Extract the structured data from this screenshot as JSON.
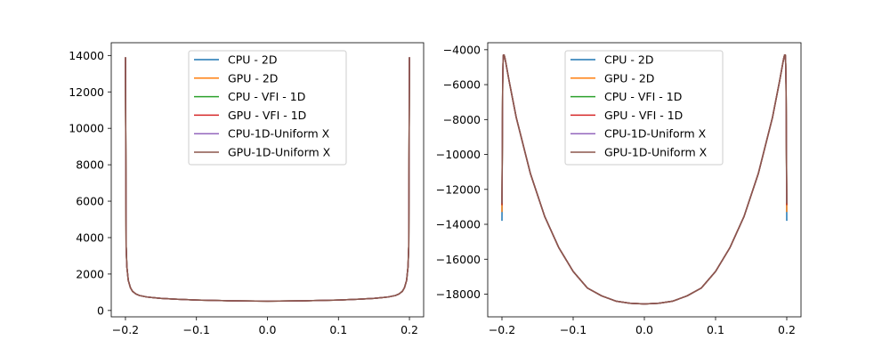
{
  "chart_data": [
    {
      "type": "line",
      "title": "",
      "xlabel": "",
      "ylabel": "",
      "xlim": [
        -0.22,
        0.22
      ],
      "ylim": [
        -350,
        14700
      ],
      "xticks": [
        -0.2,
        -0.1,
        0.0,
        0.1,
        0.2
      ],
      "xtick_labels": [
        "−0.2",
        "−0.1",
        "0.0",
        "0.1",
        "0.2"
      ],
      "yticks": [
        0,
        2000,
        4000,
        6000,
        8000,
        10000,
        12000,
        14000
      ],
      "ytick_labels": [
        "0",
        "2000",
        "4000",
        "6000",
        "8000",
        "10000",
        "12000",
        "14000"
      ],
      "grid": false,
      "legend": "upper-center",
      "x": [
        -0.2,
        -0.199,
        -0.198,
        -0.196,
        -0.193,
        -0.19,
        -0.185,
        -0.18,
        -0.17,
        -0.16,
        -0.15,
        -0.13,
        -0.1,
        -0.05,
        0.0,
        0.05,
        0.1,
        0.13,
        0.15,
        0.16,
        0.17,
        0.18,
        0.185,
        0.19,
        0.193,
        0.196,
        0.198,
        0.199,
        0.2
      ],
      "series": [
        {
          "name": "CPU - 2D",
          "color": "#1f77b4",
          "values": [
            13900,
            3500,
            2400,
            1650,
            1250,
            1050,
            900,
            820,
            740,
            700,
            665,
            620,
            570,
            530,
            510,
            530,
            570,
            620,
            665,
            700,
            740,
            820,
            900,
            1050,
            1250,
            1650,
            2400,
            3500,
            13900
          ]
        },
        {
          "name": "GPU - 2D",
          "color": "#ff7f0e",
          "values": [
            13900,
            3500,
            2400,
            1650,
            1250,
            1050,
            900,
            820,
            740,
            700,
            665,
            620,
            570,
            530,
            510,
            530,
            570,
            620,
            665,
            700,
            740,
            820,
            900,
            1050,
            1250,
            1650,
            2400,
            3500,
            13900
          ]
        },
        {
          "name": "CPU - VFI - 1D",
          "color": "#2ca02c",
          "values": [
            13900,
            3500,
            2400,
            1650,
            1250,
            1050,
            900,
            820,
            740,
            700,
            665,
            620,
            570,
            530,
            510,
            530,
            570,
            620,
            665,
            700,
            740,
            820,
            900,
            1050,
            1250,
            1650,
            2400,
            3500,
            13900
          ]
        },
        {
          "name": "GPU - VFI - 1D",
          "color": "#d62728",
          "values": [
            13900,
            3500,
            2400,
            1650,
            1250,
            1050,
            900,
            820,
            740,
            700,
            665,
            620,
            570,
            530,
            510,
            530,
            570,
            620,
            665,
            700,
            740,
            820,
            900,
            1050,
            1250,
            1650,
            2400,
            3500,
            13900
          ]
        },
        {
          "name": "CPU-1D-Uniform X",
          "color": "#9467bd",
          "values": [
            13900,
            3500,
            2400,
            1650,
            1250,
            1050,
            900,
            820,
            740,
            700,
            665,
            620,
            570,
            530,
            510,
            530,
            570,
            620,
            665,
            700,
            740,
            820,
            900,
            1050,
            1250,
            1650,
            2400,
            3500,
            13900
          ]
        },
        {
          "name": "GPU-1D-Uniform X",
          "color": "#8c564b",
          "values": [
            13900,
            3500,
            2400,
            1650,
            1250,
            1050,
            900,
            820,
            740,
            700,
            665,
            620,
            570,
            530,
            510,
            530,
            570,
            620,
            665,
            700,
            740,
            820,
            900,
            1050,
            1250,
            1650,
            2400,
            3500,
            13900
          ]
        }
      ]
    },
    {
      "type": "line",
      "title": "",
      "xlabel": "",
      "ylabel": "",
      "xlim": [
        -0.22,
        0.22
      ],
      "ylim": [
        -19300,
        -3600
      ],
      "xticks": [
        -0.2,
        -0.1,
        0.0,
        0.1,
        0.2
      ],
      "xtick_labels": [
        "−0.2",
        "−0.1",
        "0.0",
        "0.1",
        "0.2"
      ],
      "yticks": [
        -18000,
        -16000,
        -14000,
        -12000,
        -10000,
        -8000,
        -6000,
        -4000
      ],
      "ytick_labels": [
        "−18000",
        "−16000",
        "−14000",
        "−12000",
        "−10000",
        "−8000",
        "−6000",
        "−4000"
      ],
      "grid": false,
      "legend": "upper-center",
      "x": [
        -0.2,
        -0.199,
        -0.1985,
        -0.198,
        -0.197,
        -0.196,
        -0.195,
        -0.19,
        -0.18,
        -0.16,
        -0.14,
        -0.12,
        -0.1,
        -0.08,
        -0.06,
        -0.04,
        -0.02,
        0.0,
        0.02,
        0.04,
        0.06,
        0.08,
        0.1,
        0.12,
        0.14,
        0.16,
        0.18,
        0.19,
        0.195,
        0.196,
        0.197,
        0.198,
        0.1985,
        0.199,
        0.2
      ],
      "series": [
        {
          "name": "CPU - 2D",
          "color": "#1f77b4",
          "values": [
            -13800,
            -6000,
            -4800,
            -4300,
            -4300,
            -4450,
            -4650,
            -5780,
            -7870,
            -11100,
            -13550,
            -15350,
            -16700,
            -17650,
            -18100,
            -18400,
            -18520,
            -18560,
            -18520,
            -18400,
            -18100,
            -17650,
            -16700,
            -15350,
            -13550,
            -11100,
            -7870,
            -5780,
            -4650,
            -4450,
            -4300,
            -4300,
            -4800,
            -6000,
            -13800
          ]
        },
        {
          "name": "GPU - 2D",
          "color": "#ff7f0e",
          "values": [
            -13300,
            -6000,
            -4800,
            -4300,
            -4300,
            -4450,
            -4650,
            -5780,
            -7870,
            -11100,
            -13550,
            -15350,
            -16700,
            -17650,
            -18100,
            -18400,
            -18520,
            -18560,
            -18520,
            -18400,
            -18100,
            -17650,
            -16700,
            -15350,
            -13550,
            -11100,
            -7870,
            -5780,
            -4650,
            -4450,
            -4300,
            -4300,
            -4800,
            -6000,
            -13300
          ]
        },
        {
          "name": "CPU - VFI - 1D",
          "color": "#2ca02c",
          "values": [
            -12900,
            -6000,
            -4800,
            -4300,
            -4300,
            -4450,
            -4650,
            -5780,
            -7870,
            -11100,
            -13550,
            -15350,
            -16700,
            -17650,
            -18100,
            -18400,
            -18520,
            -18560,
            -18520,
            -18400,
            -18100,
            -17650,
            -16700,
            -15350,
            -13550,
            -11100,
            -7870,
            -5780,
            -4650,
            -4450,
            -4300,
            -4300,
            -4800,
            -6000,
            -12900
          ]
        },
        {
          "name": "GPU - VFI - 1D",
          "color": "#d62728",
          "values": [
            -12900,
            -6000,
            -4800,
            -4300,
            -4300,
            -4450,
            -4650,
            -5780,
            -7870,
            -11100,
            -13550,
            -15350,
            -16700,
            -17650,
            -18100,
            -18400,
            -18520,
            -18560,
            -18520,
            -18400,
            -18100,
            -17650,
            -16700,
            -15350,
            -13550,
            -11100,
            -7870,
            -5780,
            -4650,
            -4450,
            -4300,
            -4300,
            -4800,
            -6000,
            -12900
          ]
        },
        {
          "name": "CPU-1D-Uniform X",
          "color": "#9467bd",
          "values": [
            -12800,
            -6000,
            -4800,
            -4300,
            -4300,
            -4450,
            -4650,
            -5780,
            -7870,
            -11100,
            -13550,
            -15350,
            -16700,
            -17650,
            -18100,
            -18400,
            -18520,
            -18560,
            -18520,
            -18400,
            -18100,
            -17650,
            -16700,
            -15350,
            -13550,
            -11100,
            -7870,
            -5780,
            -4650,
            -4450,
            -4300,
            -4300,
            -4800,
            -6000,
            -12800
          ]
        },
        {
          "name": "GPU-1D-Uniform X",
          "color": "#8c564b",
          "values": [
            -12800,
            -6000,
            -4800,
            -4300,
            -4300,
            -4450,
            -4650,
            -5780,
            -7870,
            -11100,
            -13550,
            -15350,
            -16700,
            -17650,
            -18100,
            -18400,
            -18520,
            -18560,
            -18520,
            -18400,
            -18100,
            -17650,
            -16700,
            -15350,
            -13550,
            -11100,
            -7870,
            -5780,
            -4650,
            -4450,
            -4300,
            -4300,
            -4800,
            -6000,
            -12800
          ]
        }
      ]
    }
  ]
}
